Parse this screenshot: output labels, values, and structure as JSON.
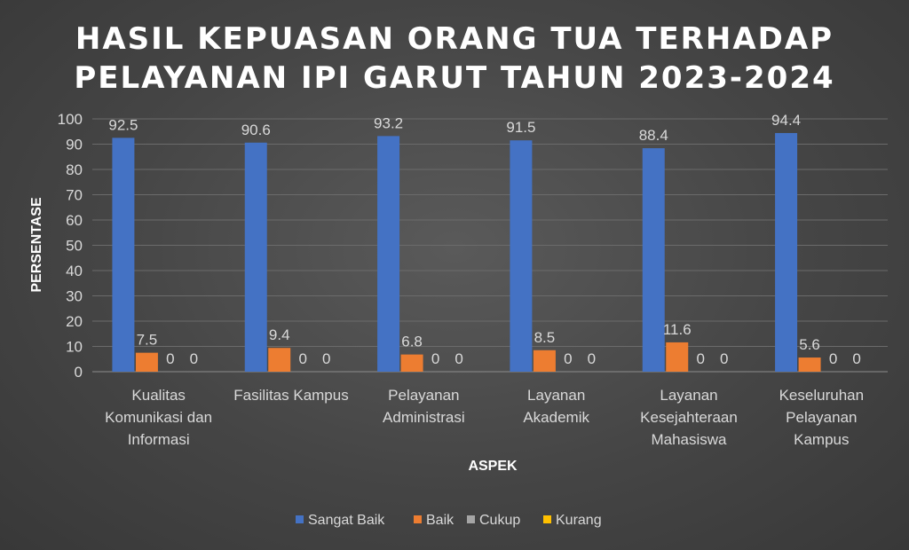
{
  "chart_data": {
    "type": "bar",
    "title_lines": [
      "HASIL KEPUASAN ORANG TUA TERHADAP",
      "PELAYANAN IPI GARUT TAHUN 2023-2024"
    ],
    "xlabel": "ASPEK",
    "ylabel": "PERSENTASE",
    "ylim": [
      0,
      100
    ],
    "yticks": [
      0,
      10,
      20,
      30,
      40,
      50,
      60,
      70,
      80,
      90,
      100
    ],
    "grid": true,
    "legend_position": "bottom",
    "categories": [
      [
        "Kualitas",
        "Komunikasi dan",
        "Informasi"
      ],
      [
        "Fasilitas Kampus"
      ],
      [
        "Pelayanan",
        "Administrasi"
      ],
      [
        "Layanan",
        "Akademik"
      ],
      [
        "Layanan",
        "Kesejahteraan",
        "Mahasiswa"
      ],
      [
        "Keseluruhan",
        "Pelayanan",
        "Kampus"
      ]
    ],
    "series": [
      {
        "name": "Sangat Baik",
        "color": "#4472c4",
        "values": [
          92.5,
          90.6,
          93.2,
          91.5,
          88.4,
          94.4
        ]
      },
      {
        "name": "Baik",
        "color": "#ed7d31",
        "values": [
          7.5,
          9.4,
          6.8,
          8.5,
          11.6,
          5.6
        ]
      },
      {
        "name": "Cukup",
        "color": "#a5a5a5",
        "values": [
          0,
          0,
          0,
          0,
          0,
          0
        ]
      },
      {
        "name": "Kurang",
        "color": "#ffc000",
        "values": [
          0,
          0,
          0,
          0,
          0,
          0
        ]
      }
    ]
  }
}
